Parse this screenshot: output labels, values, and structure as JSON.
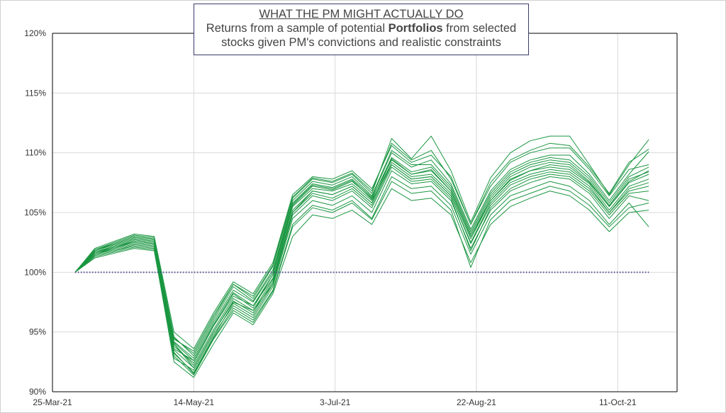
{
  "title": {
    "line1": "WHAT THE PM MIGHT ACTUALLY DO",
    "line2_pre": "Returns from a sample of potential ",
    "line2_bold": "Portfolios",
    "line2_post": " from selected",
    "line3": "stocks given PM's convictions and realistic constraints"
  },
  "colors": {
    "series": "#1a9641",
    "baseline": "#4b4b8f",
    "grid": "#d9d9d9",
    "axis": "#000000"
  },
  "chart_data": {
    "type": "line",
    "title": "WHAT THE PM MIGHT ACTUALLY DO",
    "subtitle": "Returns from a sample of potential Portfolios from selected stocks given PM's convictions and realistic constraints",
    "xlabel": "",
    "ylabel": "",
    "x_start": "2021-03-25",
    "x_end": "2021-11-01",
    "x_ticks": [
      "25-Mar-21",
      "14-May-21",
      "3-Jul-21",
      "22-Aug-21",
      "11-Oct-21"
    ],
    "x_tick_dates": [
      "2021-03-25",
      "2021-05-14",
      "2021-07-03",
      "2021-08-22",
      "2021-10-11"
    ],
    "ylim": [
      0.9,
      1.2
    ],
    "y_ticks": [
      "90%",
      "95%",
      "100%",
      "105%",
      "110%",
      "115%",
      "120%"
    ],
    "y_tick_values": [
      0.9,
      0.95,
      1.0,
      1.05,
      1.1,
      1.15,
      1.2
    ],
    "grid": true,
    "legend": "none",
    "baseline": {
      "value": 1.0,
      "from": "2021-04-02",
      "to": "2021-10-22",
      "style": "dotted"
    },
    "dates": [
      "2021-04-02",
      "2021-04-09",
      "2021-04-16",
      "2021-04-23",
      "2021-04-30",
      "2021-05-07",
      "2021-05-14",
      "2021-05-21",
      "2021-05-28",
      "2021-06-04",
      "2021-06-11",
      "2021-06-18",
      "2021-06-25",
      "2021-07-02",
      "2021-07-09",
      "2021-07-16",
      "2021-07-23",
      "2021-07-30",
      "2021-08-06",
      "2021-08-13",
      "2021-08-20",
      "2021-08-27",
      "2021-09-03",
      "2021-09-10",
      "2021-09-17",
      "2021-09-24",
      "2021-10-01",
      "2021-10-08",
      "2021-10-15",
      "2021-10-22"
    ],
    "series": [
      {
        "values": [
          1.0,
          1.017,
          1.022,
          1.028,
          1.026,
          0.94,
          0.92,
          0.95,
          0.975,
          0.968,
          0.99,
          1.05,
          1.068,
          1.065,
          1.072,
          1.058,
          1.095,
          1.082,
          1.085,
          1.068,
          1.03,
          1.06,
          1.078,
          1.085,
          1.09,
          1.088,
          1.075,
          1.055,
          1.075,
          1.082
        ]
      },
      {
        "values": [
          1.0,
          1.019,
          1.025,
          1.031,
          1.029,
          0.945,
          0.932,
          0.962,
          0.99,
          0.978,
          1.005,
          1.062,
          1.078,
          1.075,
          1.082,
          1.066,
          1.112,
          1.095,
          1.114,
          1.085,
          1.042,
          1.079,
          1.1,
          1.11,
          1.114,
          1.114,
          1.09,
          1.065,
          1.09,
          1.111
        ]
      },
      {
        "values": [
          1.0,
          1.014,
          1.018,
          1.023,
          1.021,
          0.933,
          0.915,
          0.945,
          0.97,
          0.96,
          0.985,
          1.04,
          1.056,
          1.052,
          1.06,
          1.045,
          1.08,
          1.07,
          1.072,
          1.056,
          1.015,
          1.048,
          1.064,
          1.07,
          1.076,
          1.072,
          1.06,
          1.04,
          1.058,
          1.038
        ]
      },
      {
        "values": [
          1.0,
          1.016,
          1.02,
          1.026,
          1.024,
          0.938,
          0.924,
          0.955,
          0.98,
          0.972,
          0.995,
          1.055,
          1.07,
          1.068,
          1.074,
          1.06,
          1.09,
          1.078,
          1.08,
          1.064,
          1.025,
          1.058,
          1.075,
          1.082,
          1.086,
          1.084,
          1.072,
          1.05,
          1.07,
          1.075
        ]
      },
      {
        "values": [
          1.0,
          1.018,
          1.023,
          1.029,
          1.027,
          0.942,
          0.928,
          0.958,
          0.985,
          0.975,
          1.0,
          1.058,
          1.074,
          1.071,
          1.078,
          1.063,
          1.1,
          1.088,
          1.094,
          1.074,
          1.036,
          1.068,
          1.086,
          1.094,
          1.098,
          1.098,
          1.082,
          1.06,
          1.082,
          1.101
        ]
      },
      {
        "values": [
          1.0,
          1.012,
          1.016,
          1.02,
          1.018,
          0.928,
          0.918,
          0.948,
          0.972,
          0.962,
          0.988,
          1.045,
          1.06,
          1.056,
          1.064,
          1.05,
          1.085,
          1.074,
          1.076,
          1.06,
          1.02,
          1.052,
          1.068,
          1.075,
          1.08,
          1.078,
          1.066,
          1.045,
          1.064,
          1.06
        ]
      },
      {
        "values": [
          1.0,
          1.017,
          1.021,
          1.027,
          1.025,
          0.936,
          0.926,
          0.956,
          0.982,
          0.97,
          0.998,
          1.056,
          1.072,
          1.069,
          1.076,
          1.062,
          1.094,
          1.082,
          1.086,
          1.068,
          1.03,
          1.062,
          1.08,
          1.088,
          1.092,
          1.09,
          1.076,
          1.055,
          1.076,
          1.085
        ]
      },
      {
        "values": [
          1.0,
          1.015,
          1.019,
          1.024,
          1.022,
          0.932,
          0.916,
          0.946,
          0.974,
          0.964,
          0.99,
          1.048,
          1.064,
          1.06,
          1.068,
          1.054,
          1.088,
          1.076,
          1.078,
          1.062,
          1.018,
          1.054,
          1.07,
          1.078,
          1.082,
          1.08,
          1.068,
          1.048,
          1.066,
          1.068
        ]
      },
      {
        "values": [
          1.0,
          1.02,
          1.026,
          1.032,
          1.03,
          0.95,
          0.936,
          0.966,
          0.992,
          0.982,
          1.008,
          1.065,
          1.08,
          1.078,
          1.085,
          1.07,
          1.106,
          1.092,
          1.098,
          1.08,
          1.04,
          1.072,
          1.092,
          1.1,
          1.104,
          1.104,
          1.086,
          1.064,
          1.086,
          1.09
        ]
      },
      {
        "values": [
          1.0,
          1.013,
          1.017,
          1.021,
          1.019,
          0.925,
          0.912,
          0.94,
          0.966,
          0.956,
          0.982,
          1.03,
          1.048,
          1.045,
          1.052,
          1.04,
          1.07,
          1.06,
          1.062,
          1.048,
          1.008,
          1.04,
          1.055,
          1.062,
          1.068,
          1.064,
          1.052,
          1.034,
          1.05,
          1.052
        ]
      },
      {
        "values": [
          1.0,
          1.016,
          1.021,
          1.026,
          1.024,
          0.94,
          0.922,
          0.952,
          0.978,
          0.968,
          0.994,
          1.052,
          1.068,
          1.065,
          1.072,
          1.058,
          1.092,
          1.08,
          1.082,
          1.066,
          1.028,
          1.06,
          1.077,
          1.085,
          1.088,
          1.086,
          1.074,
          1.052,
          1.072,
          1.078
        ]
      },
      {
        "values": [
          1.0,
          1.018,
          1.024,
          1.03,
          1.028,
          0.946,
          0.93,
          0.96,
          0.988,
          0.976,
          1.002,
          1.06,
          1.076,
          1.073,
          1.08,
          1.064,
          1.102,
          1.09,
          1.09,
          1.072,
          1.034,
          1.066,
          1.084,
          1.092,
          1.096,
          1.094,
          1.08,
          1.058,
          1.08,
          1.088
        ]
      },
      {
        "values": [
          1.0,
          1.015,
          1.02,
          1.025,
          1.023,
          0.935,
          0.92,
          0.95,
          0.976,
          0.966,
          0.992,
          1.05,
          1.066,
          1.062,
          1.07,
          1.056,
          1.09,
          1.078,
          1.08,
          1.064,
          1.024,
          1.056,
          1.073,
          1.08,
          1.084,
          1.082,
          1.07,
          1.05,
          1.068,
          1.072
        ]
      },
      {
        "values": [
          1.0,
          1.019,
          1.024,
          1.03,
          1.028,
          0.944,
          0.934,
          0.964,
          0.99,
          0.98,
          1.006,
          1.063,
          1.079,
          1.076,
          1.083,
          1.068,
          1.108,
          1.094,
          1.102,
          1.078,
          1.04,
          1.075,
          1.094,
          1.102,
          1.108,
          1.106,
          1.088,
          1.066,
          1.092,
          1.103
        ]
      },
      {
        "values": [
          1.0,
          1.014,
          1.018,
          1.022,
          1.02,
          0.93,
          0.914,
          0.944,
          0.968,
          0.958,
          0.984,
          1.038,
          1.054,
          1.05,
          1.058,
          1.044,
          1.076,
          1.066,
          1.068,
          1.052,
          1.004,
          1.044,
          1.06,
          1.066,
          1.072,
          1.068,
          1.056,
          1.038,
          1.054,
          1.058
        ]
      },
      {
        "values": [
          1.0,
          1.017,
          1.022,
          1.028,
          1.026,
          0.941,
          0.926,
          0.956,
          0.983,
          0.972,
          0.998,
          1.057,
          1.073,
          1.07,
          1.077,
          1.061,
          1.096,
          1.084,
          1.088,
          1.07,
          1.032,
          1.064,
          1.082,
          1.09,
          1.094,
          1.092,
          1.078,
          1.056,
          1.078,
          1.084
        ]
      }
    ]
  }
}
